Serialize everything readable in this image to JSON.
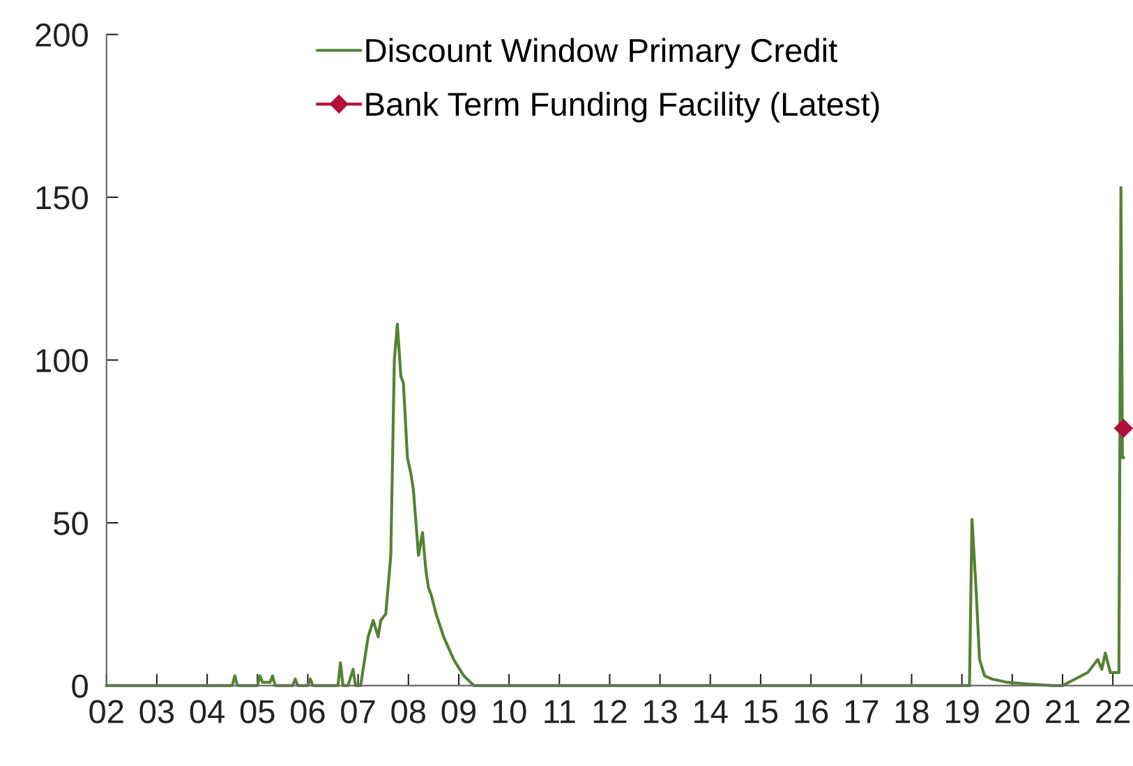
{
  "chart_data": {
    "type": "line",
    "xlim": [
      2002,
      2022.4
    ],
    "xticks": [
      {
        "value": 2002,
        "label": "02"
      },
      {
        "value": 2003,
        "label": "03"
      },
      {
        "value": 2004,
        "label": "04"
      },
      {
        "value": 2005,
        "label": "05"
      },
      {
        "value": 2006,
        "label": "06"
      },
      {
        "value": 2007,
        "label": "07"
      },
      {
        "value": 2008,
        "label": "08"
      },
      {
        "value": 2009,
        "label": "09"
      },
      {
        "value": 2010,
        "label": "10"
      },
      {
        "value": 2011,
        "label": "11"
      },
      {
        "value": 2012,
        "label": "12"
      },
      {
        "value": 2013,
        "label": "13"
      },
      {
        "value": 2014,
        "label": "14"
      },
      {
        "value": 2015,
        "label": "15"
      },
      {
        "value": 2016,
        "label": "16"
      },
      {
        "value": 2017,
        "label": "17"
      },
      {
        "value": 2018,
        "label": "18"
      },
      {
        "value": 2019,
        "label": "19"
      },
      {
        "value": 2020,
        "label": "20"
      },
      {
        "value": 2021,
        "label": "21"
      },
      {
        "value": 2022,
        "label": "22"
      }
    ],
    "ylim": [
      0,
      200
    ],
    "yticks": [
      0,
      50,
      100,
      150,
      200
    ],
    "grid": false,
    "legend": "top",
    "series": [
      {
        "name": "Discount Window Primary Credit",
        "color": "#548235",
        "marker": "none",
        "x": [
          2002.0,
          2004.5,
          2004.55,
          2004.6,
          2005.0,
          2005.05,
          2005.1,
          2005.25,
          2005.3,
          2005.35,
          2005.7,
          2005.75,
          2005.8,
          2006.0,
          2006.05,
          2006.1,
          2006.6,
          2006.65,
          2006.7,
          2006.8,
          2006.9,
          2006.95,
          2007.05,
          2007.15,
          2007.2,
          2007.3,
          2007.4,
          2007.45,
          2007.55,
          2007.65,
          2007.72,
          2007.78,
          2007.85,
          2007.9,
          2007.98,
          2008.05,
          2008.1,
          2008.2,
          2008.28,
          2008.35,
          2008.4,
          2008.45,
          2008.5,
          2008.55,
          2008.7,
          2008.9,
          2009.1,
          2009.3,
          2009.45,
          2009.55,
          2010.0,
          2019.15,
          2019.2,
          2019.28,
          2019.35,
          2019.45,
          2019.6,
          2019.9,
          2020.3,
          2020.8,
          2021.0,
          2021.25,
          2021.5,
          2021.7,
          2021.78,
          2021.85,
          2021.95,
          2022.05,
          2022.12,
          2022.16,
          2022.19,
          2022.21
        ],
        "values": [
          0,
          0,
          3,
          0,
          0,
          3,
          1,
          1,
          3,
          0,
          0,
          2,
          0,
          0,
          2,
          0,
          0,
          7,
          0,
          0,
          5,
          0,
          0,
          10,
          15,
          20,
          15,
          20,
          22,
          40,
          100,
          111,
          95,
          93,
          70,
          65,
          60,
          40,
          47,
          35,
          30,
          28,
          25,
          22,
          15,
          8,
          3,
          0,
          0,
          0,
          0,
          0,
          51,
          30,
          8,
          3,
          2,
          1,
          0.5,
          0,
          0,
          2,
          4,
          8,
          5,
          10,
          4,
          4,
          4,
          153,
          70,
          70
        ]
      },
      {
        "name": "Bank Term Funding Facility (Latest)",
        "color": "#b0103a",
        "marker": "diamond",
        "x": [
          2022.21
        ],
        "values": [
          79
        ]
      }
    ]
  }
}
